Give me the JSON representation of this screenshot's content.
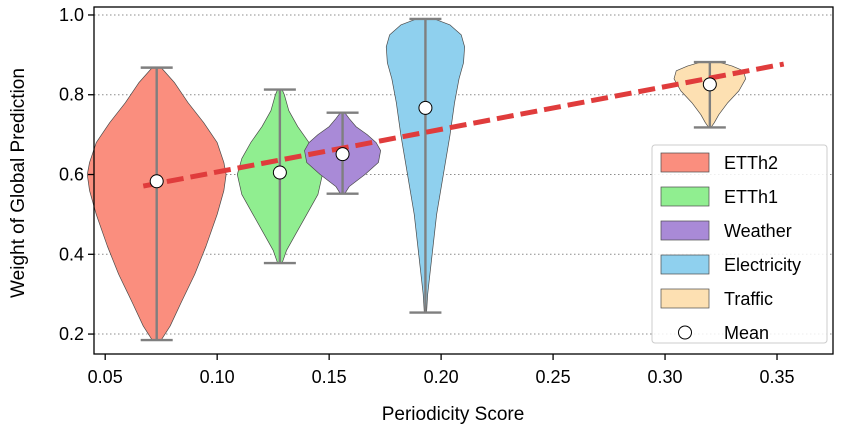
{
  "chart_data": {
    "type": "violin",
    "title": "",
    "xlabel": "Periodicity Score",
    "ylabel": "Weight of Global Prediction",
    "xlim": [
      0.045,
      0.375
    ],
    "ylim": [
      0.15,
      1.02
    ],
    "xticks": [
      0.05,
      0.1,
      0.15,
      0.2,
      0.25,
      0.3,
      0.35
    ],
    "xtick_labels": [
      "0.05",
      "0.10",
      "0.15",
      "0.20",
      "0.25",
      "0.30",
      "0.35"
    ],
    "yticks": [
      0.2,
      0.4,
      0.6,
      0.8,
      1.0
    ],
    "ytick_labels": [
      "0.2",
      "0.4",
      "0.6",
      "0.8",
      "1.0"
    ],
    "grid": "horizontal-dotted",
    "legend_position": "lower-right",
    "series": [
      {
        "name": "ETTh2",
        "color": "#fa8e7e",
        "x": 0.073,
        "mean": 0.583,
        "min": 0.185,
        "max": 0.868,
        "profile": [
          [
            0.185,
            0.002
          ],
          [
            0.22,
            0.006
          ],
          [
            0.28,
            0.011
          ],
          [
            0.35,
            0.017
          ],
          [
            0.42,
            0.022
          ],
          [
            0.5,
            0.027
          ],
          [
            0.56,
            0.03
          ],
          [
            0.6,
            0.031
          ],
          [
            0.63,
            0.03
          ],
          [
            0.68,
            0.027
          ],
          [
            0.73,
            0.021
          ],
          [
            0.78,
            0.014
          ],
          [
            0.83,
            0.008
          ],
          [
            0.868,
            0.002
          ]
        ]
      },
      {
        "name": "ETTh1",
        "color": "#90ee90",
        "x": 0.128,
        "mean": 0.605,
        "min": 0.378,
        "max": 0.813,
        "profile": [
          [
            0.378,
            0.001
          ],
          [
            0.41,
            0.003
          ],
          [
            0.45,
            0.007
          ],
          [
            0.5,
            0.012
          ],
          [
            0.55,
            0.017
          ],
          [
            0.6,
            0.019
          ],
          [
            0.64,
            0.017
          ],
          [
            0.68,
            0.013
          ],
          [
            0.72,
            0.008
          ],
          [
            0.76,
            0.004
          ],
          [
            0.8,
            0.002
          ],
          [
            0.813,
            0.001
          ]
        ]
      },
      {
        "name": "Weather",
        "color": "#a98ad7",
        "x": 0.156,
        "mean": 0.651,
        "min": 0.552,
        "max": 0.755,
        "profile": [
          [
            0.552,
            0.001
          ],
          [
            0.57,
            0.003
          ],
          [
            0.6,
            0.01
          ],
          [
            0.63,
            0.016
          ],
          [
            0.66,
            0.017
          ],
          [
            0.68,
            0.015
          ],
          [
            0.7,
            0.011
          ],
          [
            0.72,
            0.006
          ],
          [
            0.74,
            0.003
          ],
          [
            0.755,
            0.001
          ]
        ]
      },
      {
        "name": "Electricity",
        "color": "#8fd0ee",
        "x": 0.193,
        "mean": 0.767,
        "min": 0.254,
        "max": 0.99,
        "profile": [
          [
            0.254,
            0.0005
          ],
          [
            0.3,
            0.001
          ],
          [
            0.35,
            0.002
          ],
          [
            0.4,
            0.003
          ],
          [
            0.5,
            0.005
          ],
          [
            0.6,
            0.008
          ],
          [
            0.7,
            0.011
          ],
          [
            0.78,
            0.013
          ],
          [
            0.84,
            0.015
          ],
          [
            0.88,
            0.017
          ],
          [
            0.92,
            0.0175
          ],
          [
            0.95,
            0.016
          ],
          [
            0.975,
            0.011
          ],
          [
            0.99,
            0.004
          ]
        ]
      },
      {
        "name": "Traffic",
        "color": "#fde0b2",
        "x": 0.32,
        "mean": 0.826,
        "min": 0.718,
        "max": 0.882,
        "profile": [
          [
            0.718,
            0.0005
          ],
          [
            0.73,
            0.002
          ],
          [
            0.75,
            0.004
          ],
          [
            0.78,
            0.008
          ],
          [
            0.81,
            0.013
          ],
          [
            0.84,
            0.016
          ],
          [
            0.86,
            0.015
          ],
          [
            0.872,
            0.01
          ],
          [
            0.882,
            0.004
          ]
        ]
      }
    ],
    "trend": {
      "label": "trend",
      "color": "#e03c3c",
      "x": [
        0.067,
        0.353
      ],
      "y": [
        0.571,
        0.877
      ]
    },
    "mean_marker": {
      "label": "Mean",
      "color": "#ffffff"
    },
    "whisker_color": "#7f7f7f"
  }
}
